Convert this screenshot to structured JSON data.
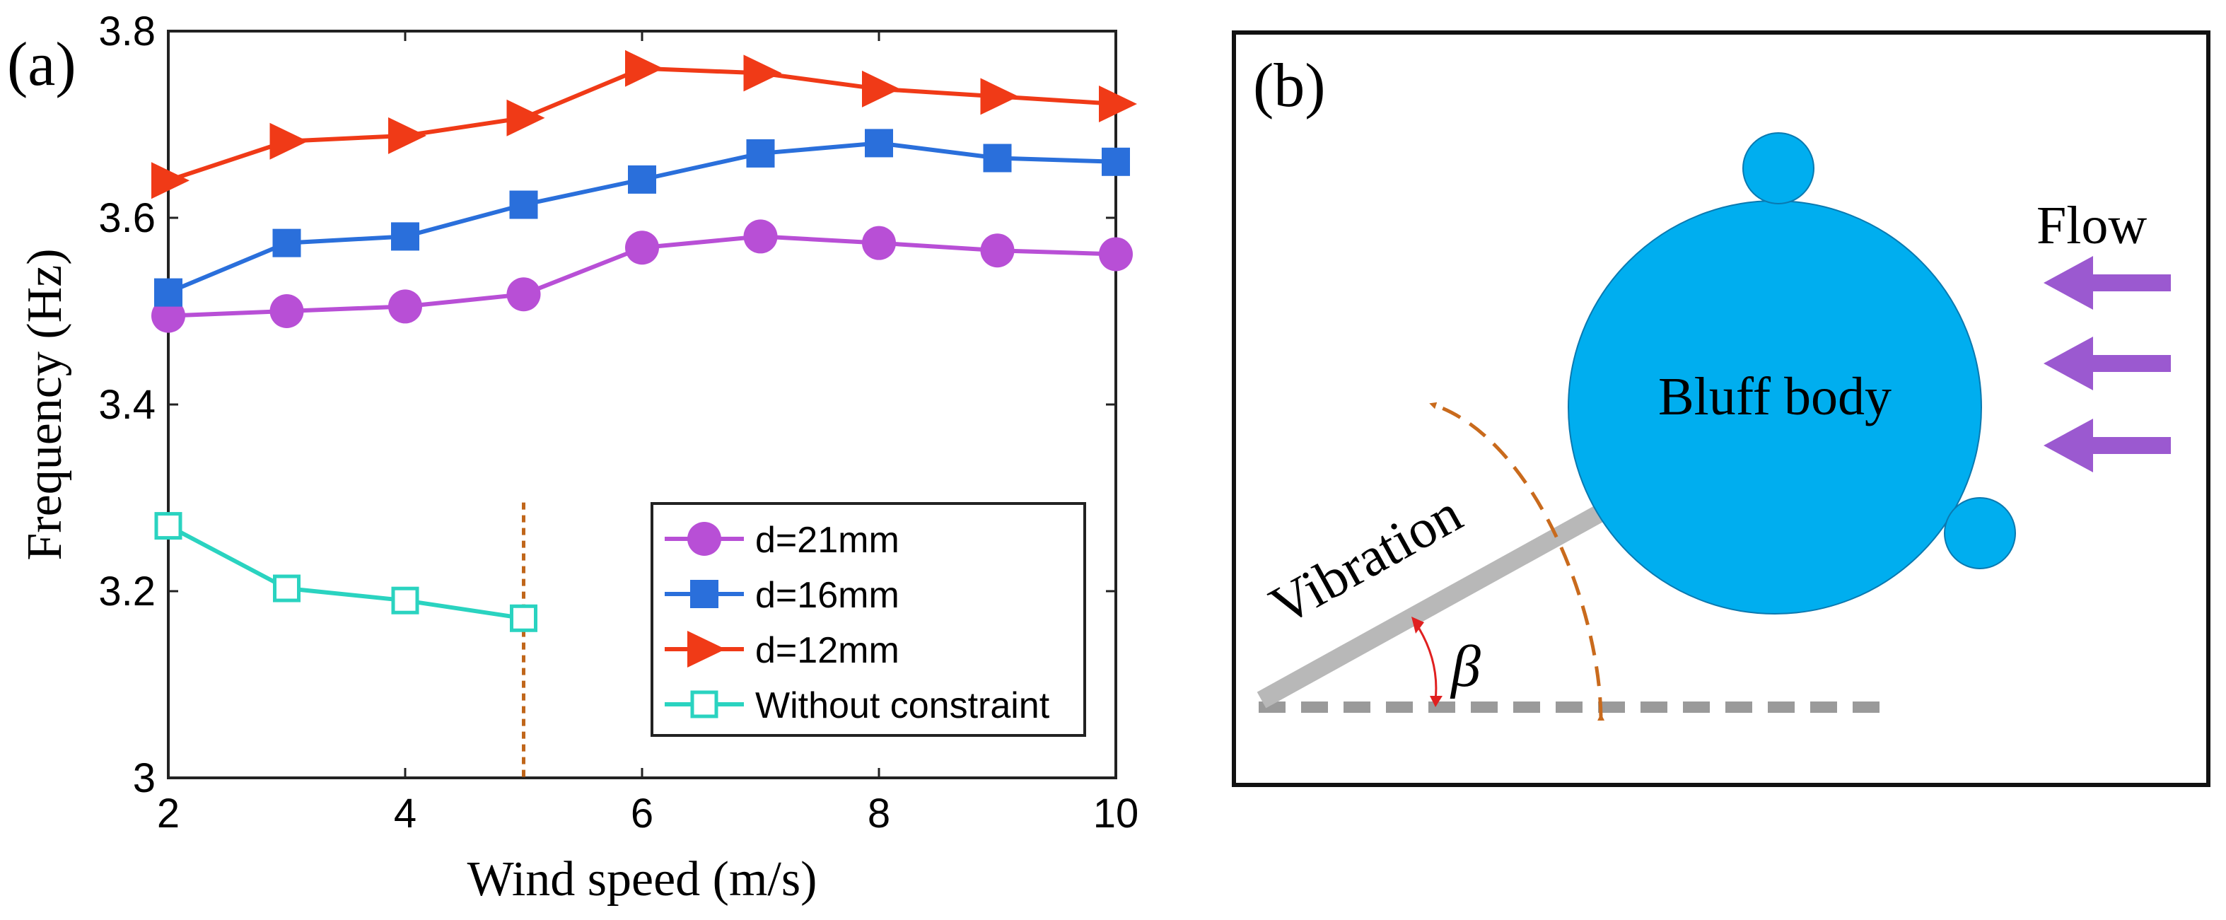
{
  "panel_a": {
    "panel_label": "(a)",
    "legend": [
      "d=21mm",
      "d=16mm",
      "d=12mm",
      "Without constraint"
    ]
  },
  "panel_b": {
    "panel_label": "(b)",
    "flow_label": "Flow",
    "body_label": "Bluff body",
    "vibration_label": "Vibration",
    "angle_label": "β"
  },
  "chart_data": {
    "type": "line",
    "xlabel": "Wind speed (m/s)",
    "ylabel": "Frequency (Hz)",
    "xlim": [
      2,
      10
    ],
    "ylim": [
      3,
      3.8
    ],
    "xticks": [
      2,
      4,
      6,
      8,
      10
    ],
    "yticks": [
      3,
      3.2,
      3.4,
      3.6,
      3.8
    ],
    "ytick_labels": [
      "3",
      "3.2",
      "3.4",
      "3.6",
      "3.8"
    ],
    "vline_x": 5,
    "series": [
      {
        "name": "d=21mm",
        "color": "#b84fd6",
        "marker": "circle",
        "x": [
          2,
          3,
          4,
          5,
          6,
          7,
          8,
          9,
          10
        ],
        "y": [
          3.495,
          3.5,
          3.505,
          3.518,
          3.568,
          3.58,
          3.573,
          3.565,
          3.561
        ]
      },
      {
        "name": "d=16mm",
        "color": "#2a6fdb",
        "marker": "square",
        "x": [
          2,
          3,
          4,
          5,
          6,
          7,
          8,
          9,
          10
        ],
        "y": [
          3.52,
          3.573,
          3.58,
          3.614,
          3.641,
          3.669,
          3.68,
          3.664,
          3.66
        ]
      },
      {
        "name": "d=12mm",
        "color": "#f03a17",
        "marker": "triangle",
        "x": [
          2,
          3,
          4,
          5,
          6,
          7,
          8,
          9,
          10
        ],
        "y": [
          3.64,
          3.682,
          3.688,
          3.707,
          3.76,
          3.755,
          3.738,
          3.73,
          3.722
        ]
      },
      {
        "name": "Without constraint",
        "color": "#2ad3c0",
        "marker": "open-square",
        "x": [
          2,
          3,
          4,
          5
        ],
        "y": [
          3.27,
          3.203,
          3.19,
          3.171
        ]
      }
    ]
  }
}
